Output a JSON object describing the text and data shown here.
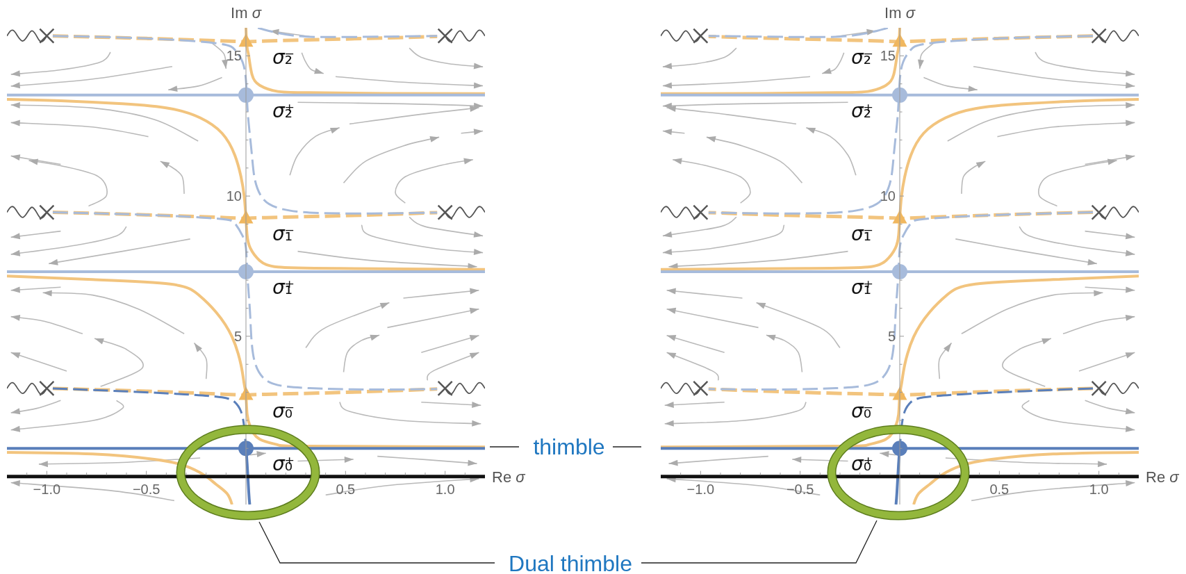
{
  "chart_data": [
    {
      "type": "line",
      "xlabel": "Re σ",
      "ylabel": "Im σ",
      "xlim": [
        -1.2,
        1.2
      ],
      "ylim": [
        -1,
        16
      ],
      "xticks": [
        {
          "value": -1.1,
          "label": null
        },
        {
          "value": -1,
          "label": "−1.0"
        },
        {
          "value": -0.9,
          "label": null
        },
        {
          "value": -0.8,
          "label": null
        },
        {
          "value": -0.7,
          "label": null
        },
        {
          "value": -0.6,
          "label": null
        },
        {
          "value": -0.5,
          "label": "−0.5"
        },
        {
          "value": -0.4,
          "label": null
        },
        {
          "value": -0.3,
          "label": null
        },
        {
          "value": -0.2,
          "label": null
        },
        {
          "value": -0.1,
          "label": null
        },
        {
          "value": 0.1,
          "label": null
        },
        {
          "value": 0.2,
          "label": null
        },
        {
          "value": 0.3,
          "label": null
        },
        {
          "value": 0.4,
          "label": null
        },
        0.5,
        {
          "value": 0.6,
          "label": null
        },
        {
          "value": 0.7,
          "label": null
        },
        {
          "value": 0.8,
          "label": null
        },
        {
          "value": 0.9,
          "label": null
        },
        {
          "value": 1,
          "label": "1.0"
        },
        {
          "value": 1.1,
          "label": null
        }
      ],
      "yticks": [
        {
          "value": 1,
          "label": null
        },
        {
          "value": 2,
          "label": null
        },
        {
          "value": 3,
          "label": null
        },
        {
          "value": 4,
          "label": null
        },
        5,
        {
          "value": 6,
          "label": null
        },
        {
          "value": 7,
          "label": null
        },
        {
          "value": 8,
          "label": null
        },
        {
          "value": 9,
          "label": null
        },
        10,
        {
          "value": 11,
          "label": null
        },
        {
          "value": 12,
          "label": null
        },
        {
          "value": 13,
          "label": null
        },
        {
          "value": 14,
          "label": null
        },
        15
      ],
      "annotations": [
        "thimble",
        "Dual thimble"
      ],
      "series": [
        {
          "color": "#f2c47e",
          "line_style": "solid",
          "x": [
            0,
            0.003,
            0.008,
            0.014,
            0.03,
            0.069,
            0.16,
            0.32,
            0.7,
            1.2
          ],
          "values": [
            16,
            15.5,
            15.2,
            15,
            14.34,
            13.95,
            13.73,
            13.69,
            13.66,
            13.65
          ]
        },
        {
          "color": "#f2c47e",
          "line_style": "solid",
          "x": [
            -1.2,
            -0.93,
            -0.62,
            -0.38,
            -0.23,
            -0.12,
            -0.056,
            -0.025,
            -0.009,
            0,
            0.006,
            0.022,
            0.069,
            0.16,
            0.47,
            1.2
          ],
          "values": [
            13.45,
            13.4,
            13.29,
            13.12,
            12.79,
            12.24,
            11.46,
            10.69,
            10,
            9.2,
            8.59,
            8.14,
            7.7,
            7.47,
            7.42,
            7.38
          ]
        },
        {
          "color": "#f2c47e",
          "line_style": "solid",
          "x": [
            -1.2,
            -0.77,
            -0.38,
            -0.24,
            -0.15,
            -0.07,
            -0.025,
            -0.009,
            0,
            0.006,
            0.022,
            0.069,
            0.16,
            0.32,
            1.2
          ],
          "values": [
            7.15,
            7.02,
            6.86,
            6.49,
            5.86,
            4.98,
            3.98,
            3.3,
            2.9,
            2.21,
            1.77,
            1.33,
            1.13,
            1.08,
            1.05
          ]
        },
        {
          "color": "#f2c47e",
          "line_style": "solid",
          "x": [
            -1.2,
            -0.77,
            -0.46,
            -0.31,
            -0.21,
            -0.15,
            -0.095,
            -0.07
          ],
          "values": [
            0.86,
            0.8,
            0.61,
            0.39,
            0.05,
            -0.28,
            -0.61,
            -1
          ]
        },
        {
          "color": "#f2c47e",
          "line_style": "dashed",
          "x": [
            -0.97,
            -0.5,
            -0.1,
            0,
            0.1,
            0.5,
            0.96
          ],
          "values": [
            15.71,
            15.62,
            15.53,
            15.5,
            15.53,
            15.6,
            15.69
          ]
        },
        {
          "color": "#f2c47e",
          "line_style": "dashed",
          "x": [
            -0.97,
            -0.5,
            -0.1,
            0,
            0.1,
            0.5,
            0.96
          ],
          "values": [
            9.42,
            9.33,
            9.23,
            9.2,
            9.23,
            9.3,
            9.41
          ]
        },
        {
          "color": "#f2c47e",
          "line_style": "dashed",
          "x": [
            -0.97,
            -0.5,
            -0.1,
            0,
            0.1,
            0.5,
            0.96
          ],
          "values": [
            3.14,
            3.04,
            2.93,
            2.9,
            2.93,
            3,
            3.12
          ]
        },
        {
          "color": "#a7bbdb",
          "line_style": "solid",
          "x": [
            -1.2,
            1.2
          ],
          "values": [
            13.6,
            13.6
          ]
        },
        {
          "color": "#a7bbdb",
          "line_style": "solid",
          "x": [
            -1.2,
            1.2
          ],
          "values": [
            7.3,
            7.3
          ]
        },
        {
          "color": "#5a7fba",
          "line_style": "solid",
          "x": [
            -1.2,
            1.2
          ],
          "values": [
            1,
            1
          ]
        },
        {
          "color": "#5a7fba",
          "line_style": "solid",
          "x": [
            0,
            0.006,
            0.014,
            0.019
          ],
          "values": [
            1,
            0.44,
            -0.55,
            -1
          ]
        },
        {
          "color": "#a7bbdb",
          "line_style": "dashed",
          "x": [
            -0.97,
            -0.5,
            -0.15,
            -0.056,
            -0.017,
            0,
            0.006,
            0.014,
            0.03,
            0.045,
            0.084,
            0.16,
            0.32,
            0.63,
            0.96
          ],
          "values": [
            15.71,
            15.62,
            15.45,
            15.22,
            14.78,
            14.12,
            13.34,
            12.57,
            11.46,
            10.58,
            9.92,
            9.58,
            9.41,
            9.38,
            9.41
          ]
        },
        {
          "color": "#a7bbdb",
          "line_style": "dashed",
          "x": [
            0.06,
            0.115,
            0.24,
            0.47,
            0.96
          ],
          "values": [
            16,
            15.89,
            15.72,
            15.67,
            15.71
          ]
        },
        {
          "color": "#a7bbdb",
          "line_style": "dashed",
          "x": [
            -0.97,
            -0.5,
            -0.15,
            -0.056,
            -0.017,
            0,
            0.006,
            0.014,
            0.022,
            0.037,
            0.084,
            0.16,
            0.32,
            0.63,
            0.96
          ],
          "values": [
            9.42,
            9.33,
            9.2,
            9.03,
            8.58,
            8.14,
            7.37,
            6.5,
            5.64,
            4.31,
            3.54,
            3.26,
            3.15,
            3.1,
            3.12
          ]
        },
        {
          "color": "#5a7fba",
          "line_style": "dashed",
          "x": [
            -0.97,
            -0.62,
            -0.31,
            -0.12,
            -0.056,
            -0.025,
            -0.009,
            0
          ],
          "values": [
            3.14,
            3.04,
            2.93,
            2.82,
            2.65,
            2.32,
            1.77,
            1
          ]
        },
        {
          "color": "#555555",
          "x": [
            -1.2,
            -1.165,
            -1.12,
            -1.075,
            -1.035,
            -1
          ],
          "values": [
            15.71,
            15.89,
            15.53,
            15.89,
            15.53,
            15.71
          ]
        },
        {
          "color": "#555555",
          "x": [
            -1.2,
            -1.165,
            -1.12,
            -1.075,
            -1.035,
            -1
          ],
          "values": [
            9.42,
            9.6,
            9.24,
            9.6,
            9.24,
            9.42
          ]
        },
        {
          "color": "#555555",
          "x": [
            -1.2,
            -1.165,
            -1.12,
            -1.075,
            -1.035,
            -1
          ],
          "values": [
            3.14,
            3.32,
            2.96,
            3.32,
            2.96,
            3.14
          ]
        },
        {
          "color": "#555555",
          "x": [
            1,
            1.035,
            1.075,
            1.12,
            1.165,
            1.2
          ],
          "values": [
            15.71,
            15.53,
            15.89,
            15.53,
            15.89,
            15.71
          ]
        },
        {
          "color": "#555555",
          "x": [
            1,
            1.035,
            1.075,
            1.12,
            1.165,
            1.2
          ],
          "values": [
            9.42,
            9.24,
            9.6,
            9.24,
            9.6,
            9.42
          ]
        },
        {
          "color": "#555555",
          "x": [
            1,
            1.035,
            1.075,
            1.12,
            1.165,
            1.2
          ],
          "values": [
            3.14,
            2.96,
            3.32,
            2.96,
            3.32,
            3.14
          ]
        },
        {
          "type": "scatter",
          "marker": "circle",
          "color": "#5a7fba",
          "x": [
            0
          ],
          "values": [
            1
          ],
          "value_labels": [
            "σ₀⁺"
          ]
        },
        {
          "type": "scatter",
          "marker": "circle",
          "color": "#a7bbdb",
          "x": [
            0,
            0
          ],
          "values": [
            7.3,
            13.6
          ],
          "value_labels": [
            "σ₁⁺",
            "σ₂⁺"
          ]
        },
        {
          "type": "scatter",
          "marker": "triangle",
          "color": "#f0b75f",
          "x": [
            0,
            0,
            0
          ],
          "values": [
            2.9,
            9.2,
            15.5
          ],
          "value_labels": [
            "σ₀⁻",
            "σ₁⁻",
            "σ₂⁻"
          ]
        },
        {
          "type": "scatter",
          "marker": "cross",
          "color": "#555555",
          "x": [
            -1,
            -1,
            -1,
            1,
            1,
            1
          ],
          "values": [
            3.14,
            9.42,
            15.71,
            3.14,
            9.42,
            15.71
          ]
        }
      ]
    },
    {
      "type": "line",
      "xlabel": "Re σ",
      "ylabel": "Im σ",
      "xlim": [
        -1.2,
        1.2
      ],
      "ylim": [
        -1,
        16
      ],
      "xticks": [
        {
          "value": -1.1,
          "label": null
        },
        {
          "value": -1,
          "label": "−1.0"
        },
        {
          "value": -0.9,
          "label": null
        },
        {
          "value": -0.8,
          "label": null
        },
        {
          "value": -0.7,
          "label": null
        },
        {
          "value": -0.6,
          "label": null
        },
        {
          "value": -0.5,
          "label": "−0.5"
        },
        {
          "value": -0.4,
          "label": null
        },
        {
          "value": -0.3,
          "label": null
        },
        {
          "value": -0.2,
          "label": null
        },
        {
          "value": -0.1,
          "label": null
        },
        {
          "value": 0.1,
          "label": null
        },
        {
          "value": 0.2,
          "label": null
        },
        {
          "value": 0.3,
          "label": null
        },
        {
          "value": 0.4,
          "label": null
        },
        0.5,
        {
          "value": 0.6,
          "label": null
        },
        {
          "value": 0.7,
          "label": null
        },
        {
          "value": 0.8,
          "label": null
        },
        {
          "value": 0.9,
          "label": null
        },
        {
          "value": 1,
          "label": "1.0"
        },
        {
          "value": 1.1,
          "label": null
        }
      ],
      "yticks": [
        {
          "value": 1,
          "label": null
        },
        {
          "value": 2,
          "label": null
        },
        {
          "value": 3,
          "label": null
        },
        {
          "value": 4,
          "label": null
        },
        5,
        {
          "value": 6,
          "label": null
        },
        {
          "value": 7,
          "label": null
        },
        {
          "value": 8,
          "label": null
        },
        {
          "value": 9,
          "label": null
        },
        10,
        {
          "value": 11,
          "label": null
        },
        {
          "value": 12,
          "label": null
        },
        {
          "value": 13,
          "label": null
        },
        {
          "value": 14,
          "label": null
        },
        15
      ],
      "series": [
        {
          "color": "#f2c47e",
          "line_style": "solid",
          "x": [
            0,
            -0.003,
            -0.008,
            -0.014,
            -0.03,
            -0.069,
            -0.16,
            -0.32,
            -0.7,
            -1.2
          ],
          "values": [
            16,
            15.5,
            15.2,
            15,
            14.34,
            13.95,
            13.73,
            13.69,
            13.66,
            13.65
          ]
        },
        {
          "color": "#f2c47e",
          "line_style": "solid",
          "x": [
            1.2,
            0.93,
            0.62,
            0.38,
            0.23,
            0.12,
            0.056,
            0.025,
            0.009,
            0,
            -0.006,
            -0.022,
            -0.069,
            -0.16,
            -0.47,
            -1.2
          ],
          "values": [
            13.45,
            13.4,
            13.29,
            13.12,
            12.79,
            12.24,
            11.46,
            10.69,
            10,
            9.2,
            8.59,
            8.14,
            7.7,
            7.47,
            7.42,
            7.38
          ]
        },
        {
          "color": "#f2c47e",
          "line_style": "solid",
          "x": [
            1.2,
            0.77,
            0.38,
            0.24,
            0.15,
            0.07,
            0.025,
            0.009,
            0,
            -0.006,
            -0.022,
            -0.069,
            -0.16,
            -0.32,
            -1.2
          ],
          "values": [
            7.15,
            7.02,
            6.86,
            6.49,
            5.86,
            4.98,
            3.98,
            3.3,
            2.9,
            2.21,
            1.77,
            1.33,
            1.13,
            1.08,
            1.05
          ]
        },
        {
          "color": "#f2c47e",
          "line_style": "solid",
          "x": [
            1.2,
            0.77,
            0.46,
            0.31,
            0.21,
            0.15,
            0.095,
            0.07
          ],
          "values": [
            0.86,
            0.8,
            0.61,
            0.39,
            0.05,
            -0.28,
            -0.61,
            -1
          ]
        },
        {
          "color": "#f2c47e",
          "line_style": "dashed",
          "x": [
            0.97,
            0.5,
            0.1,
            0,
            -0.1,
            -0.5,
            -0.96
          ],
          "values": [
            15.71,
            15.62,
            15.53,
            15.5,
            15.53,
            15.6,
            15.69
          ]
        },
        {
          "color": "#f2c47e",
          "line_style": "dashed",
          "x": [
            0.97,
            0.5,
            0.1,
            0,
            -0.1,
            -0.5,
            -0.96
          ],
          "values": [
            9.42,
            9.33,
            9.23,
            9.2,
            9.23,
            9.3,
            9.41
          ]
        },
        {
          "color": "#f2c47e",
          "line_style": "dashed",
          "x": [
            0.97,
            0.5,
            0.1,
            0,
            -0.1,
            -0.5,
            -0.96
          ],
          "values": [
            3.14,
            3.04,
            2.93,
            2.9,
            2.93,
            3,
            3.12
          ]
        },
        {
          "color": "#a7bbdb",
          "line_style": "solid",
          "x": [
            1.2,
            -1.2
          ],
          "values": [
            13.6,
            13.6
          ]
        },
        {
          "color": "#a7bbdb",
          "line_style": "solid",
          "x": [
            1.2,
            -1.2
          ],
          "values": [
            7.3,
            7.3
          ]
        },
        {
          "color": "#5a7fba",
          "line_style": "solid",
          "x": [
            1.2,
            -1.2
          ],
          "values": [
            1,
            1
          ]
        },
        {
          "color": "#5a7fba",
          "line_style": "solid",
          "x": [
            0,
            -0.006,
            -0.014,
            -0.019
          ],
          "values": [
            1,
            0.44,
            -0.55,
            -1
          ]
        },
        {
          "color": "#a7bbdb",
          "line_style": "dashed",
          "x": [
            0.97,
            0.5,
            0.15,
            0.056,
            0.017,
            0,
            -0.006,
            -0.014,
            -0.03,
            -0.045,
            -0.084,
            -0.16,
            -0.32,
            -0.63,
            -0.96
          ],
          "values": [
            15.71,
            15.62,
            15.45,
            15.22,
            14.78,
            14.12,
            13.34,
            12.57,
            11.46,
            10.58,
            9.92,
            9.58,
            9.41,
            9.38,
            9.41
          ]
        },
        {
          "color": "#a7bbdb",
          "line_style": "dashed",
          "x": [
            -0.06,
            -0.115,
            -0.24,
            -0.47,
            -0.96
          ],
          "values": [
            16,
            15.89,
            15.72,
            15.67,
            15.71
          ]
        },
        {
          "color": "#a7bbdb",
          "line_style": "dashed",
          "x": [
            0.97,
            0.5,
            0.15,
            0.056,
            0.017,
            0,
            -0.006,
            -0.014,
            -0.022,
            -0.037,
            -0.084,
            -0.16,
            -0.32,
            -0.63,
            -0.96
          ],
          "values": [
            9.42,
            9.33,
            9.2,
            9.03,
            8.58,
            8.14,
            7.37,
            6.5,
            5.64,
            4.31,
            3.54,
            3.26,
            3.15,
            3.1,
            3.12
          ]
        },
        {
          "color": "#5a7fba",
          "line_style": "dashed",
          "x": [
            0.97,
            0.62,
            0.31,
            0.12,
            0.056,
            0.025,
            0.009,
            0
          ],
          "values": [
            3.14,
            3.04,
            2.93,
            2.82,
            2.65,
            2.32,
            1.77,
            1
          ]
        },
        {
          "color": "#555555",
          "x": [
            1.2,
            1.165,
            1.12,
            1.075,
            1.035,
            1
          ],
          "values": [
            15.71,
            15.89,
            15.53,
            15.89,
            15.53,
            15.71
          ]
        },
        {
          "color": "#555555",
          "x": [
            1.2,
            1.165,
            1.12,
            1.075,
            1.035,
            1
          ],
          "values": [
            9.42,
            9.6,
            9.24,
            9.6,
            9.24,
            9.42
          ]
        },
        {
          "color": "#555555",
          "x": [
            1.2,
            1.165,
            1.12,
            1.075,
            1.035,
            1
          ],
          "values": [
            3.14,
            3.32,
            2.96,
            3.32,
            2.96,
            3.14
          ]
        },
        {
          "color": "#555555",
          "x": [
            -1,
            -1.035,
            -1.075,
            -1.12,
            -1.165,
            -1.2
          ],
          "values": [
            15.71,
            15.53,
            15.89,
            15.53,
            15.89,
            15.71
          ]
        },
        {
          "color": "#555555",
          "x": [
            -1,
            -1.035,
            -1.075,
            -1.12,
            -1.165,
            -1.2
          ],
          "values": [
            9.42,
            9.24,
            9.6,
            9.24,
            9.6,
            9.42
          ]
        },
        {
          "color": "#555555",
          "x": [
            -1,
            -1.035,
            -1.075,
            -1.12,
            -1.165,
            -1.2
          ],
          "values": [
            3.14,
            2.96,
            3.32,
            2.96,
            3.32,
            3.14
          ]
        },
        {
          "type": "scatter",
          "marker": "circle",
          "color": "#5a7fba",
          "x": [
            0
          ],
          "values": [
            1
          ],
          "value_labels": [
            "σ₀⁺"
          ]
        },
        {
          "type": "scatter",
          "marker": "circle",
          "color": "#a7bbdb",
          "x": [
            0,
            0
          ],
          "values": [
            7.3,
            13.6
          ],
          "value_labels": [
            "σ₁⁺",
            "σ₂⁺"
          ]
        },
        {
          "type": "scatter",
          "marker": "triangle",
          "color": "#f0b75f",
          "x": [
            0,
            0,
            0
          ],
          "values": [
            2.9,
            9.2,
            15.5
          ],
          "value_labels": [
            "σ₀⁻",
            "σ₁⁻",
            "σ₂⁻"
          ]
        },
        {
          "type": "scatter",
          "marker": "cross",
          "color": "#555555",
          "x": [
            -1,
            -1,
            -1,
            1,
            1,
            1
          ],
          "values": [
            3.14,
            9.42,
            15.71,
            3.14,
            9.42,
            15.71
          ]
        }
      ]
    }
  ]
}
